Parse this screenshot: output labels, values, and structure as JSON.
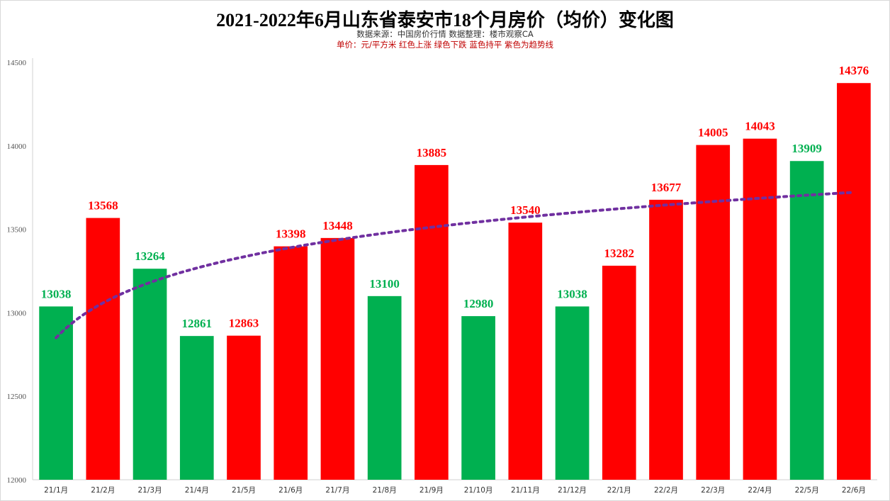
{
  "chart_data": {
    "type": "bar",
    "title": "2021-2022年6月山东省泰安市18个月房价（均价）变化图",
    "subtitle": "数据来源：中国房价行情   数据整理：楼市观察CA",
    "unit_note": "单价：元/平方米   红色上涨  绿色下跌  蓝色持平  紫色为趋势线",
    "categories": [
      "21/1月",
      "21/2月",
      "21/3月",
      "21/4月",
      "21/5月",
      "21/6月",
      "21/7月",
      "21/8月",
      "21/9月",
      "21/10月",
      "21/11月",
      "21/12月",
      "22/1月",
      "22/2月",
      "22/3月",
      "22/4月",
      "22/5月",
      "22/6月"
    ],
    "values": [
      13038,
      13568,
      13264,
      12861,
      12863,
      13398,
      13448,
      13100,
      13885,
      12980,
      13540,
      13038,
      13282,
      13677,
      14005,
      14043,
      13909,
      14376
    ],
    "bar_colors": [
      "#00b050",
      "#ff0000",
      "#00b050",
      "#00b050",
      "#ff0000",
      "#ff0000",
      "#ff0000",
      "#00b050",
      "#ff0000",
      "#00b050",
      "#ff0000",
      "#00b050",
      "#ff0000",
      "#ff0000",
      "#ff0000",
      "#ff0000",
      "#00b050",
      "#ff0000"
    ],
    "label_colors": [
      "#00b050",
      "#ff0000",
      "#00b050",
      "#00b050",
      "#ff0000",
      "#ff0000",
      "#ff0000",
      "#00b050",
      "#ff0000",
      "#00b050",
      "#ff0000",
      "#00b050",
      "#ff0000",
      "#ff0000",
      "#ff0000",
      "#ff0000",
      "#00b050",
      "#ff0000"
    ],
    "ylim": [
      12000,
      14500
    ],
    "yticks": [
      "12000",
      "12500",
      "13000",
      "13500",
      "14000",
      "14500"
    ],
    "trendline": {
      "type": "logarithmic",
      "color": "#7030a0"
    },
    "grid": false,
    "legend": "none"
  }
}
